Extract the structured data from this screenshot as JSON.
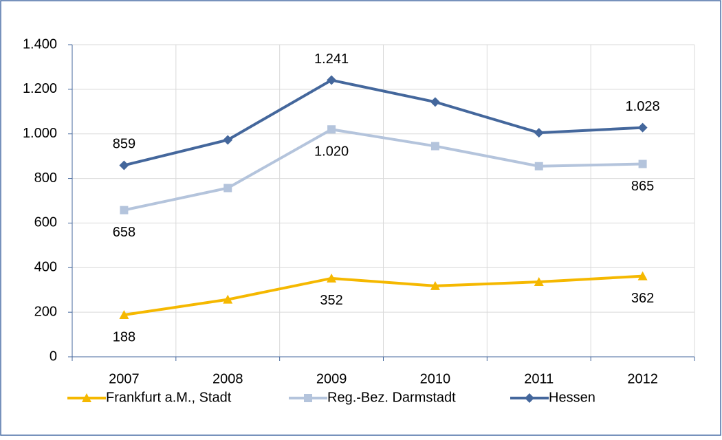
{
  "chart_data": {
    "type": "line",
    "categories": [
      "2007",
      "2008",
      "2009",
      "2010",
      "2011",
      "2012"
    ],
    "series": [
      {
        "name": "Frankfurt a.M., Stadt",
        "color": "#f5b800",
        "marker": "triangle",
        "values": [
          188,
          257,
          352,
          318,
          336,
          362
        ],
        "value_labels": [
          "188",
          null,
          "352",
          null,
          null,
          "362"
        ],
        "label_position": "below"
      },
      {
        "name": "Reg.-Bez. Darmstadt",
        "color": "#b4c4dc",
        "marker": "square",
        "values": [
          658,
          757,
          1020,
          945,
          855,
          865
        ],
        "value_labels": [
          "658",
          null,
          "1.020",
          null,
          null,
          "865"
        ],
        "label_position": "below"
      },
      {
        "name": "Hessen",
        "color": "#44679c",
        "marker": "diamond",
        "values": [
          859,
          973,
          1241,
          1143,
          1005,
          1028
        ],
        "value_labels": [
          "859",
          null,
          "1.241",
          null,
          null,
          "1.028"
        ],
        "label_position": "above"
      }
    ],
    "ylim": [
      0,
      1400
    ],
    "yticks": [
      0,
      200,
      400,
      600,
      800,
      {
        "value": 1000,
        "label": "1.000"
      },
      {
        "value": 1200,
        "label": "1.200"
      },
      {
        "value": 1400,
        "label": "1.400"
      }
    ],
    "grid": true,
    "legend": "bottom"
  }
}
